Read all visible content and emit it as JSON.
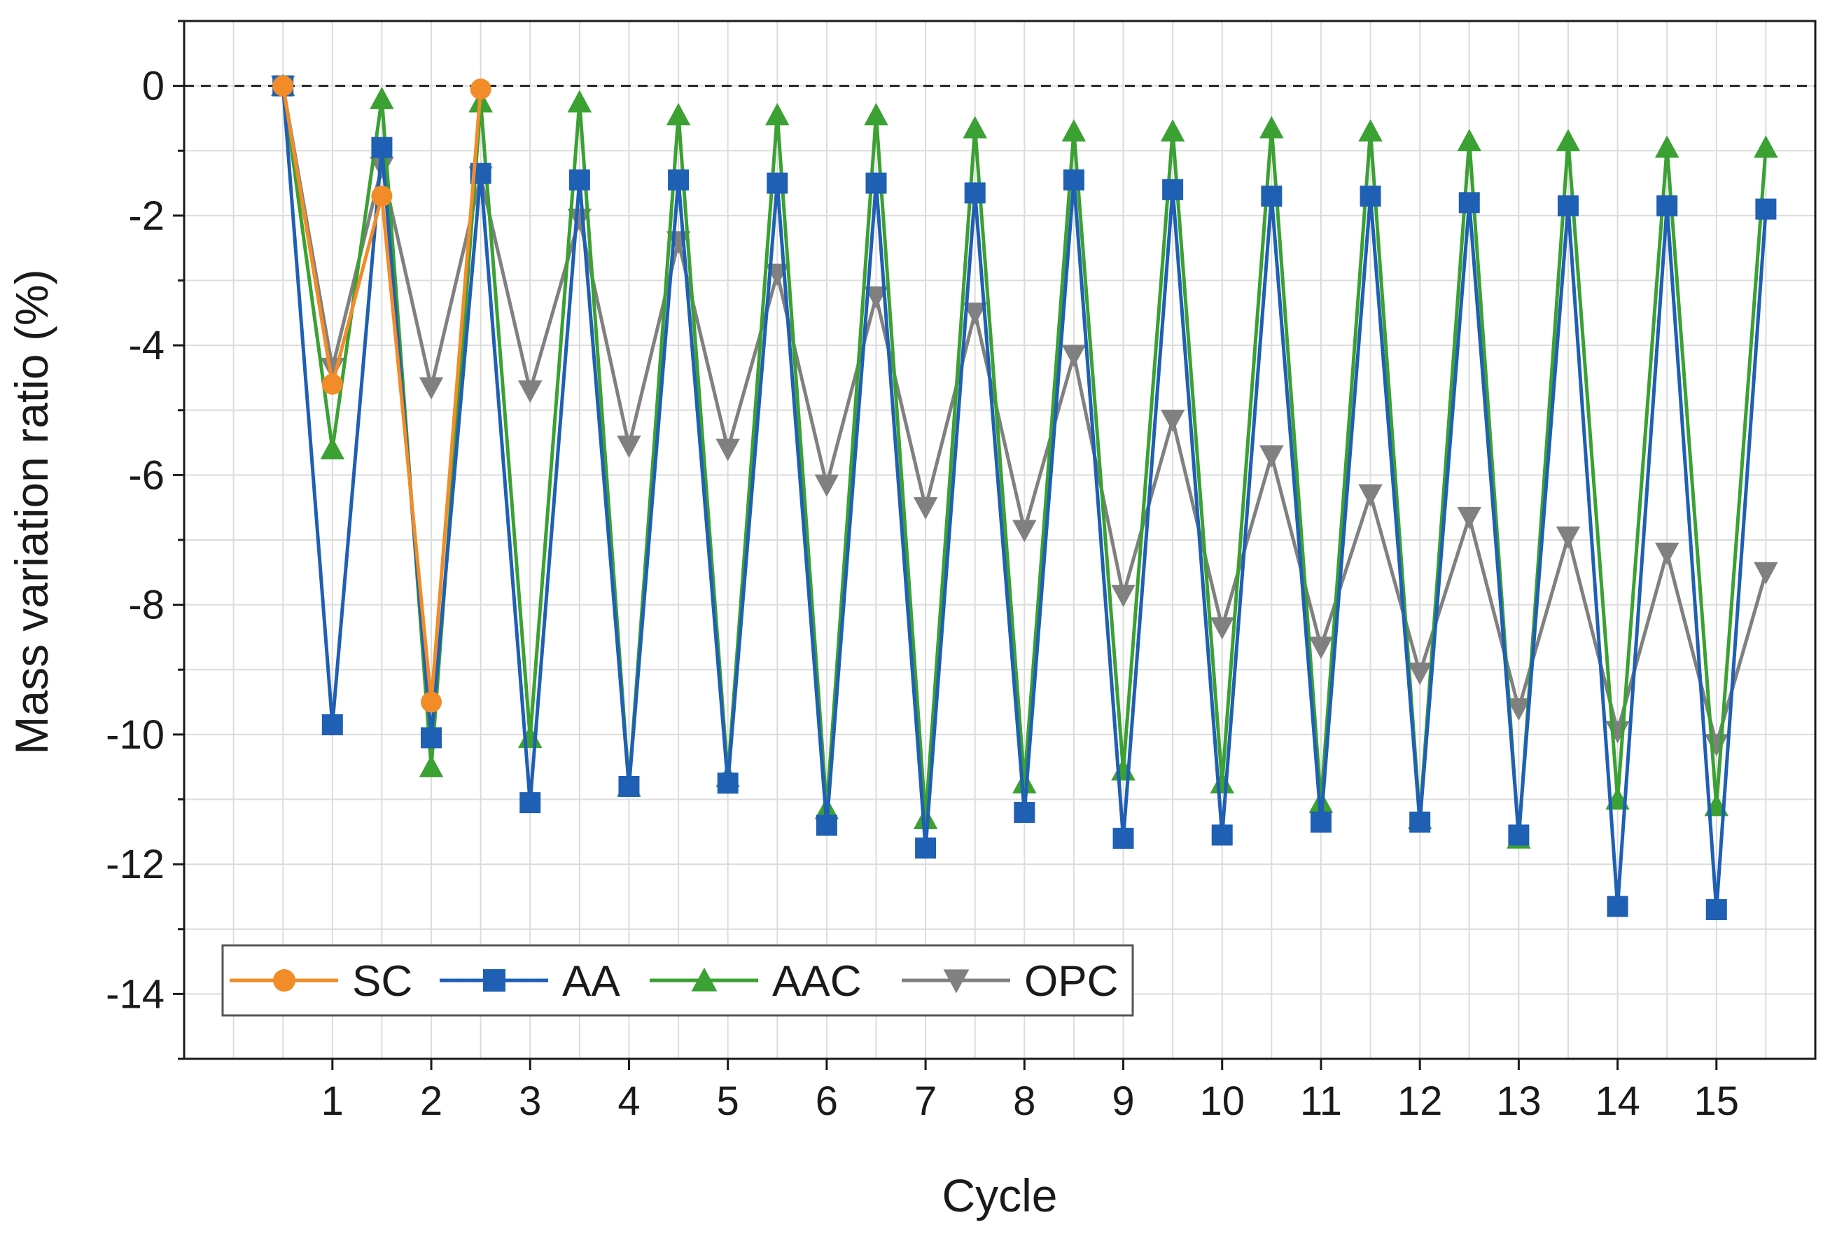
{
  "chart_data": {
    "type": "line",
    "title": "",
    "xlabel": "Cycle",
    "ylabel": "Mass variation ratio (%)",
    "xlim": [
      -0.5,
      16.0
    ],
    "ylim": [
      -15,
      1
    ],
    "x_ticks": [
      1,
      2,
      3,
      4,
      5,
      6,
      7,
      8,
      9,
      10,
      11,
      12,
      13,
      14,
      15
    ],
    "x_tick_labels": [
      "1",
      "2",
      "3",
      "4",
      "5",
      "6",
      "7",
      "8",
      "9",
      "10",
      "11",
      "12",
      "13",
      "14",
      "15"
    ],
    "y_ticks": [
      0,
      -2,
      -4,
      -6,
      -8,
      -10,
      -12,
      -14
    ],
    "y_tick_labels": [
      "0",
      "-2",
      "-4",
      "-6",
      "-8",
      "-10",
      "-12",
      "-14"
    ],
    "grid": true,
    "reference_line": 0,
    "legend_position": "bottom-left",
    "series": [
      {
        "name": "SC",
        "color": "#f28c28",
        "marker": "circle",
        "x": [
          0.5,
          1,
          1.5,
          2,
          2.5
        ],
        "values": [
          0,
          -4.6,
          -1.7,
          -9.5,
          -0.05
        ]
      },
      {
        "name": "AA",
        "color": "#1f5fb4",
        "marker": "square",
        "x": [
          0.5,
          1,
          1.5,
          2,
          2.5,
          3,
          3.5,
          4,
          4.5,
          5,
          5.5,
          6,
          6.5,
          7,
          7.5,
          8,
          8.5,
          9,
          9.5,
          10,
          10.5,
          11,
          11.5,
          12,
          12.5,
          13,
          13.5,
          14,
          14.5,
          15,
          15.5
        ],
        "values": [
          0,
          -9.85,
          -0.95,
          -10.05,
          -1.35,
          -11.05,
          -1.45,
          -10.8,
          -1.45,
          -10.75,
          -1.5,
          -11.4,
          -1.5,
          -11.75,
          -1.65,
          -11.2,
          -1.45,
          -11.6,
          -1.6,
          -11.55,
          -1.7,
          -11.35,
          -1.7,
          -11.35,
          -1.8,
          -11.55,
          -1.85,
          -12.65,
          -1.85,
          -12.7,
          -1.9
        ]
      },
      {
        "name": "AAC",
        "color": "#3aa132",
        "marker": "triangle-up",
        "x": [
          0.5,
          1,
          1.5,
          2,
          2.5,
          3,
          3.5,
          4,
          4.5,
          5,
          5.5,
          6,
          6.5,
          7,
          7.5,
          8,
          8.5,
          9,
          9.5,
          10,
          10.5,
          11,
          11.5,
          12,
          12.5,
          13,
          13.5,
          14,
          14.5,
          15,
          15.5
        ],
        "values": [
          0,
          -5.6,
          -0.2,
          -10.5,
          -0.25,
          -10.05,
          -0.25,
          -10.8,
          -0.45,
          -10.65,
          -0.45,
          -11.15,
          -0.45,
          -11.3,
          -0.65,
          -10.75,
          -0.7,
          -10.55,
          -0.7,
          -10.75,
          -0.65,
          -11.05,
          -0.7,
          -11.3,
          -0.85,
          -11.6,
          -0.85,
          -11.0,
          -0.95,
          -11.1,
          -0.95
        ]
      },
      {
        "name": "OPC",
        "color": "#808080",
        "marker": "triangle-down",
        "x": [
          0.5,
          1,
          1.5,
          2,
          2.5,
          3,
          3.5,
          4,
          4.5,
          5,
          5.5,
          6,
          6.5,
          7,
          7.5,
          8,
          8.5,
          9,
          9.5,
          10,
          10.5,
          11,
          11.5,
          12,
          12.5,
          13,
          13.5,
          14,
          14.5,
          15,
          15.5
        ],
        "values": [
          0,
          -4.35,
          -1.25,
          -4.65,
          -1.4,
          -4.7,
          -2.05,
          -5.55,
          -2.4,
          -5.6,
          -2.9,
          -6.15,
          -3.25,
          -6.5,
          -3.5,
          -6.85,
          -4.15,
          -7.85,
          -5.15,
          -8.35,
          -5.7,
          -8.65,
          -6.3,
          -9.05,
          -6.65,
          -9.6,
          -6.95,
          -9.95,
          -7.2,
          -10.15,
          -7.5
        ]
      }
    ]
  }
}
